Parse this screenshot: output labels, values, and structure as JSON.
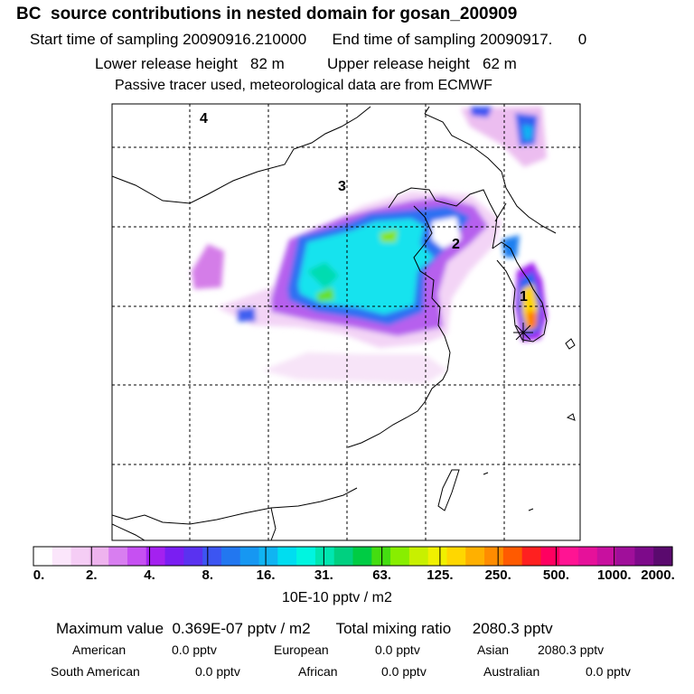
{
  "header": {
    "title": "BC  source contributions in nested domain for gosan_200909",
    "sampling_line": "Start time of sampling 20090916.210000      End time of sampling 20090917.      0",
    "release_line": "Lower release height   82 m          Upper release height   62 m",
    "tracer_line": "Passive tracer used, meteorological data are from ECMWF"
  },
  "map": {
    "region_labels": [
      "1",
      "2",
      "3",
      "4"
    ],
    "receptor_marker": "star-icon",
    "grid": true
  },
  "colorbar": {
    "tick_labels": [
      "0.",
      "2.",
      "4.",
      "8.",
      "16.",
      "31.",
      "63.",
      "125.",
      "250.",
      "500.",
      "1000.",
      "2000."
    ],
    "units": "10E-10 pptv / m2",
    "colors": [
      "#ffffff",
      "#fbe6fb",
      "#f5cdf5",
      "#eeb3ee",
      "#d87ef0",
      "#c650f2",
      "#a421f0",
      "#7a1ef2",
      "#5a32f0",
      "#3c55f2",
      "#2277f0",
      "#1697f2",
      "#10b4f2",
      "#00ddf0",
      "#00f5e0",
      "#00e6b0",
      "#00d080",
      "#00cc44",
      "#44dd11",
      "#88ee00",
      "#c8f000",
      "#f0f000",
      "#ffd700",
      "#ffb000",
      "#ff8c00",
      "#ff5a00",
      "#ff2020",
      "#ff0060",
      "#ff1493",
      "#e6119a",
      "#c8109f",
      "#a00f9a",
      "#7d0a8a",
      "#5a0a6e"
    ]
  },
  "stats": {
    "max_line": "Maximum value  0.369E-07 pptv / m2      Total mixing ratio     2080.3 pptv",
    "american_label": "American",
    "american_value": "0.0 pptv",
    "european_label": "European",
    "european_value": "0.0 pptv",
    "asian_label": "Asian",
    "asian_value": "2080.3 pptv",
    "south_american_label": "South American",
    "south_american_value": "0.0 pptv",
    "african_label": "African",
    "african_value": "0.0 pptv",
    "australian_label": "Australian",
    "australian_value": "0.0 pptv"
  }
}
